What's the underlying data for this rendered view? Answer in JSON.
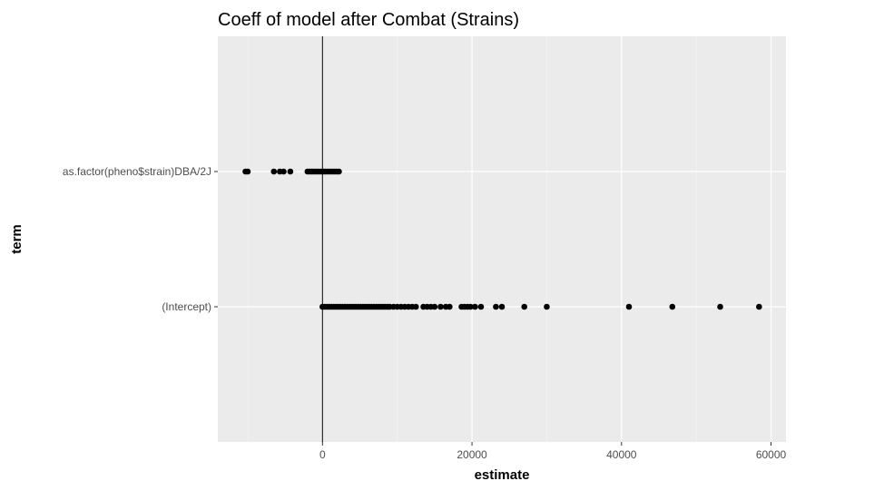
{
  "chart_data": {
    "type": "scatter",
    "title": "Coeff of model after Combat (Strains)",
    "xlabel": "estimate",
    "ylabel": "term",
    "xlim": [
      -14000,
      62000
    ],
    "x_ticks": [
      0,
      20000,
      40000,
      60000
    ],
    "x_tick_labels": [
      "0",
      "20000",
      "40000",
      "60000"
    ],
    "vline_x": 0,
    "grid": true,
    "categories": [
      "(Intercept)",
      "as.factor(pheno$strain)DBA/2J"
    ],
    "series": [
      {
        "term": "as.factor(pheno$strain)DBA/2J",
        "values": [
          -10300,
          -10000,
          -6500,
          -5700,
          -5200,
          -4300,
          -2000,
          -1700,
          -1400,
          -1100,
          -800,
          -500,
          -200,
          100,
          400,
          700,
          1000,
          1300,
          1600,
          1900,
          2200
        ]
      },
      {
        "term": "(Intercept)",
        "values": [
          0,
          300,
          600,
          900,
          1200,
          1500,
          1800,
          2100,
          2400,
          2700,
          3000,
          3300,
          3600,
          3900,
          4200,
          4500,
          4800,
          5100,
          5400,
          5700,
          6000,
          6300,
          6600,
          6900,
          7200,
          7500,
          7800,
          8100,
          8400,
          8700,
          9000,
          9500,
          10000,
          10500,
          11000,
          11500,
          12000,
          12500,
          13500,
          14000,
          14500,
          15000,
          15800,
          16500,
          17000,
          18600,
          19000,
          19400,
          19800,
          20400,
          21200,
          23200,
          24000,
          27000,
          30000,
          41000,
          46800,
          53200,
          58400
        ]
      }
    ]
  }
}
